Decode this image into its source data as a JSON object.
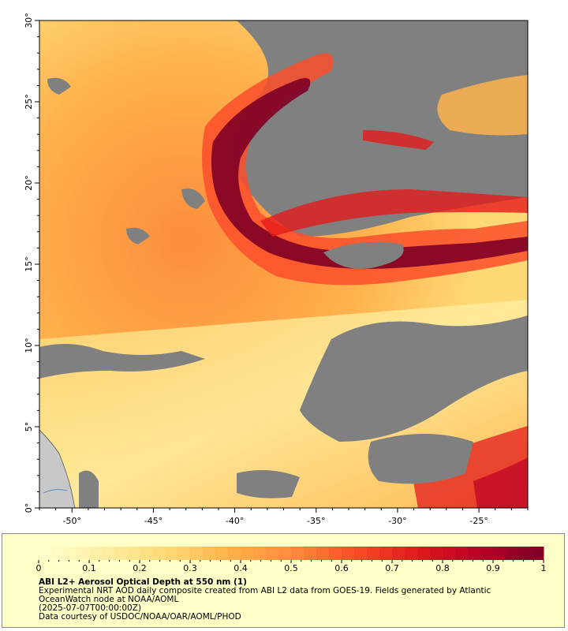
{
  "map": {
    "lon_range": [
      -52,
      -22
    ],
    "lat_range": [
      0,
      30
    ],
    "lon_ticks": [
      -50,
      -45,
      -40,
      -35,
      -30,
      -25
    ],
    "lat_ticks": [
      0,
      5,
      10,
      15,
      20,
      25,
      30
    ],
    "lon_tick_labels": [
      "-50°",
      "-45°",
      "-40°",
      "-35°",
      "-30°",
      "-25°"
    ],
    "lat_tick_labels": [
      "0°",
      "5°",
      "10°",
      "15°",
      "20°",
      "25°",
      "30°"
    ],
    "missing_data_color": "#808080",
    "land_color": "#c8c8c8"
  },
  "colorbar": {
    "min": 0,
    "max": 1,
    "tick_labels": [
      "0",
      "0.1",
      "0.2",
      "0.3",
      "0.4",
      "0.5",
      "0.6",
      "0.7",
      "0.8",
      "0.9",
      "1"
    ],
    "colors": [
      "#ffffcc",
      "#ffeda0",
      "#fed976",
      "#feb24c",
      "#fd8d3c",
      "#fc4e2a",
      "#e31a1c",
      "#bd0026",
      "#800026"
    ]
  },
  "legend": {
    "title": "ABI L2+ Aerosol Optical Depth at 550 nm (1)",
    "description": "Experimental NRT AOD daily composite created from ABI L2 data from GOES-19. Fields generated by Atlantic OceanWatch node at NOAA/AOML",
    "date": "(2025-07-07T00:00:00Z)",
    "credit": "Data courtesy of USDOC/NOAA/OAR/AOML/PHOD"
  }
}
